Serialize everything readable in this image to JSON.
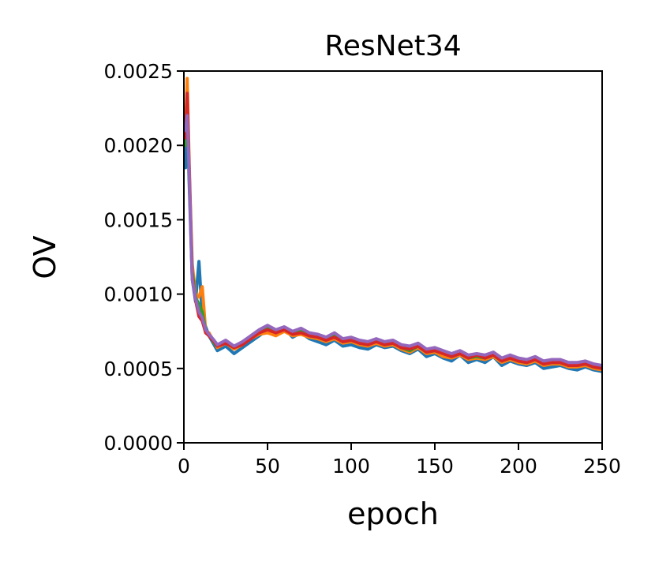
{
  "chart_data": {
    "type": "line",
    "title": "ResNet34",
    "xlabel": "epoch",
    "ylabel": "OV",
    "xlim": [
      0,
      250
    ],
    "ylim": [
      0,
      0.0025
    ],
    "grid": false,
    "legend": "none",
    "xticks": [
      {
        "value": 0,
        "label": "0"
      },
      {
        "value": 50,
        "label": "50"
      },
      {
        "value": 100,
        "label": "100"
      },
      {
        "value": 150,
        "label": "150"
      },
      {
        "value": 200,
        "label": "200"
      },
      {
        "value": 250,
        "label": "250"
      }
    ],
    "yticks": [
      {
        "value": 0.0,
        "label": "0.0000"
      },
      {
        "value": 0.0005,
        "label": "0.0005"
      },
      {
        "value": 0.001,
        "label": "0.0010"
      },
      {
        "value": 0.0015,
        "label": "0.0015"
      },
      {
        "value": 0.002,
        "label": "0.0020"
      },
      {
        "value": 0.0025,
        "label": "0.0025"
      }
    ],
    "x": [
      1,
      2,
      3,
      4,
      5,
      7,
      9,
      11,
      13,
      15,
      18,
      20,
      25,
      30,
      35,
      40,
      45,
      50,
      55,
      60,
      65,
      70,
      75,
      80,
      85,
      90,
      95,
      100,
      105,
      110,
      115,
      120,
      125,
      130,
      135,
      140,
      145,
      150,
      155,
      160,
      165,
      170,
      175,
      180,
      185,
      190,
      195,
      200,
      205,
      210,
      215,
      220,
      225,
      230,
      235,
      240,
      245,
      250
    ],
    "series": [
      {
        "color": "#1f77b4",
        "values": [
          0.00185,
          0.00225,
          0.0018,
          0.00145,
          0.0011,
          0.00095,
          0.00122,
          0.00085,
          0.00078,
          0.00072,
          0.00066,
          0.00062,
          0.00065,
          0.0006,
          0.00064,
          0.00068,
          0.00072,
          0.00076,
          0.00073,
          0.00077,
          0.00071,
          0.00074,
          0.0007,
          0.00068,
          0.00066,
          0.00069,
          0.00065,
          0.00066,
          0.00064,
          0.00063,
          0.00066,
          0.00064,
          0.00065,
          0.00062,
          0.0006,
          0.00063,
          0.00058,
          0.0006,
          0.00057,
          0.00055,
          0.00059,
          0.00054,
          0.00056,
          0.00054,
          0.00058,
          0.00052,
          0.00055,
          0.00053,
          0.00052,
          0.00054,
          0.0005,
          0.00051,
          0.00052,
          0.0005,
          0.00049,
          0.00051,
          0.00049,
          0.00048
        ]
      },
      {
        "color": "#ff7f0e",
        "values": [
          0.0021,
          0.00245,
          0.00195,
          0.00155,
          0.0012,
          0.001,
          0.00098,
          0.00105,
          0.00075,
          0.00074,
          0.00068,
          0.00064,
          0.00067,
          0.00063,
          0.00066,
          0.0007,
          0.00073,
          0.00074,
          0.00072,
          0.00075,
          0.00072,
          0.00073,
          0.00071,
          0.0007,
          0.00068,
          0.0007,
          0.00067,
          0.00068,
          0.00066,
          0.00065,
          0.00067,
          0.00065,
          0.00066,
          0.00063,
          0.00061,
          0.00064,
          0.0006,
          0.00061,
          0.00058,
          0.00057,
          0.00059,
          0.00056,
          0.00057,
          0.00056,
          0.00058,
          0.00054,
          0.00056,
          0.00054,
          0.00053,
          0.00055,
          0.00052,
          0.00053,
          0.00053,
          0.00051,
          0.00051,
          0.00052,
          0.0005,
          0.00049
        ]
      },
      {
        "color": "#2ca02c",
        "values": [
          0.002,
          0.0023,
          0.00185,
          0.0015,
          0.00115,
          0.00098,
          0.00093,
          0.00088,
          0.00076,
          0.00073,
          0.00067,
          0.00065,
          0.00068,
          0.00064,
          0.00067,
          0.00071,
          0.00075,
          0.00078,
          0.00074,
          0.00077,
          0.00073,
          0.00075,
          0.00072,
          0.00071,
          0.00069,
          0.00073,
          0.00068,
          0.00069,
          0.00067,
          0.00066,
          0.00069,
          0.00066,
          0.00067,
          0.00064,
          0.00062,
          0.00065,
          0.00061,
          0.00062,
          0.0006,
          0.00058,
          0.0006,
          0.00057,
          0.00058,
          0.00057,
          0.00059,
          0.00055,
          0.00057,
          0.00055,
          0.00054,
          0.00056,
          0.00053,
          0.00054,
          0.00054,
          0.00052,
          0.00052,
          0.00053,
          0.00051,
          0.0005
        ]
      },
      {
        "color": "#d62728",
        "values": [
          0.00205,
          0.00235,
          0.0019,
          0.00152,
          0.00112,
          0.00096,
          0.00085,
          0.00082,
          0.00074,
          0.00072,
          0.00068,
          0.00065,
          0.00067,
          0.00064,
          0.00066,
          0.0007,
          0.00074,
          0.00076,
          0.00074,
          0.00076,
          0.00073,
          0.00074,
          0.00072,
          0.00071,
          0.00069,
          0.00071,
          0.00068,
          0.00069,
          0.00067,
          0.00066,
          0.00068,
          0.00066,
          0.00067,
          0.00064,
          0.00063,
          0.00065,
          0.00061,
          0.00062,
          0.0006,
          0.00058,
          0.0006,
          0.00057,
          0.00059,
          0.00057,
          0.00059,
          0.00055,
          0.00057,
          0.00055,
          0.00054,
          0.00056,
          0.00053,
          0.00054,
          0.00054,
          0.00052,
          0.00052,
          0.00053,
          0.00051,
          0.0005
        ]
      },
      {
        "color": "#9467bd",
        "values": [
          0.0021,
          0.0022,
          0.00188,
          0.00148,
          0.0011,
          0.00097,
          0.00088,
          0.00084,
          0.00076,
          0.00073,
          0.00069,
          0.00066,
          0.00069,
          0.00065,
          0.00068,
          0.00072,
          0.00076,
          0.00079,
          0.00076,
          0.00078,
          0.00075,
          0.00077,
          0.00074,
          0.00073,
          0.00071,
          0.00074,
          0.0007,
          0.00071,
          0.00069,
          0.00068,
          0.0007,
          0.00068,
          0.00069,
          0.00066,
          0.00065,
          0.00067,
          0.00063,
          0.00064,
          0.00062,
          0.0006,
          0.00062,
          0.00059,
          0.0006,
          0.00059,
          0.00061,
          0.00057,
          0.00059,
          0.00057,
          0.00056,
          0.00058,
          0.00055,
          0.00056,
          0.00056,
          0.00054,
          0.00054,
          0.00055,
          0.00053,
          0.00052
        ]
      }
    ]
  }
}
